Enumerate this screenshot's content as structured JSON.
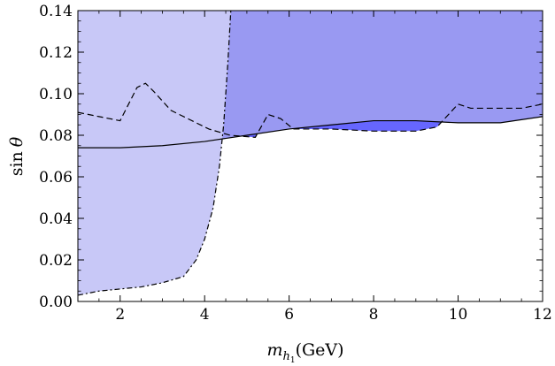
{
  "chart_data": {
    "type": "area",
    "x_range": [
      1,
      12
    ],
    "y_range": [
      0,
      0.14
    ],
    "xlabel": {
      "var": "m",
      "sub": "h",
      "subsub": "1",
      "unit": "(GeV)"
    },
    "ylabel": {
      "text": "sin",
      "symbol": "θ"
    },
    "x_ticks": [
      2,
      4,
      6,
      8,
      10,
      12
    ],
    "x_tick_labels": [
      "2",
      "4",
      "6",
      "8",
      "10",
      "12"
    ],
    "y_ticks": [
      0.0,
      0.02,
      0.04,
      0.06,
      0.08,
      0.1,
      0.12,
      0.14
    ],
    "y_tick_labels": [
      "0.00",
      "0.02",
      "0.04",
      "0.06",
      "0.08",
      "0.10",
      "0.12",
      "0.14"
    ],
    "grid": false,
    "legend": "none",
    "series": [
      {
        "style": "dashed",
        "fill_color": "#6666ff",
        "x": [
          1.0,
          1.5,
          2.0,
          2.4,
          2.6,
          2.8,
          3.2,
          3.6,
          4.1,
          4.6,
          5.2,
          5.5,
          5.8,
          6.1,
          7.0,
          8.0,
          9.0,
          9.5,
          10.0,
          10.3,
          11.0,
          11.5,
          12.0
        ],
        "y": [
          0.091,
          0.089,
          0.087,
          0.103,
          0.105,
          0.101,
          0.092,
          0.088,
          0.083,
          0.08,
          0.079,
          0.09,
          0.088,
          0.083,
          0.083,
          0.082,
          0.082,
          0.084,
          0.095,
          0.093,
          0.093,
          0.093,
          0.095
        ]
      },
      {
        "style": "solid",
        "fill_color": "#9999f2",
        "x": [
          1.0,
          1.5,
          2.0,
          3.0,
          4.0,
          5.0,
          6.0,
          7.0,
          8.0,
          9.0,
          10.0,
          11.0,
          12.0
        ],
        "y": [
          0.074,
          0.074,
          0.074,
          0.075,
          0.077,
          0.08,
          0.083,
          0.085,
          0.087,
          0.087,
          0.086,
          0.086,
          0.089
        ]
      },
      {
        "style": "dot-dashed",
        "fill_color": "#c8c8f7",
        "x": [
          1.0,
          1.5,
          2.0,
          2.5,
          3.0,
          3.5,
          3.8,
          4.0,
          4.2,
          4.35,
          4.45,
          4.55,
          4.62
        ],
        "y": [
          0.003,
          0.005,
          0.006,
          0.007,
          0.009,
          0.012,
          0.02,
          0.03,
          0.045,
          0.065,
          0.085,
          0.115,
          0.14
        ]
      }
    ]
  }
}
